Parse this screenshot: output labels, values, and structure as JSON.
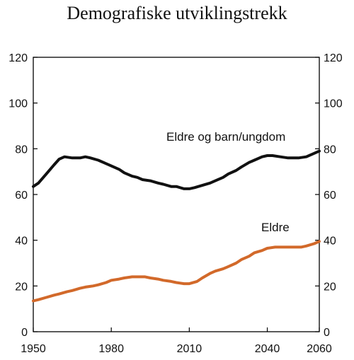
{
  "chart_data": {
    "type": "line",
    "title": "Demografiske utviklingstrekk",
    "xlabel": "",
    "ylabel": "",
    "xlim": [
      1950,
      2060
    ],
    "ylim": [
      0,
      120
    ],
    "x_ticks": [
      1950,
      1980,
      2010,
      2040,
      2060
    ],
    "y_ticks": [
      0,
      20,
      40,
      60,
      80,
      100,
      120
    ],
    "right_axis": true,
    "grid": false,
    "colors": {
      "axis": "#000000",
      "eldre": "#d2692a",
      "eldre_og_barn": "#111111"
    },
    "series": [
      {
        "name": "Eldre og barn/ungdom",
        "x": [
          1950,
          1952,
          1955,
          1958,
          1960,
          1962,
          1965,
          1968,
          1970,
          1972,
          1975,
          1978,
          1980,
          1983,
          1985,
          1988,
          1990,
          1992,
          1995,
          1998,
          2000,
          2003,
          2005,
          2008,
          2010,
          2012,
          2015,
          2018,
          2020,
          2023,
          2025,
          2028,
          2030,
          2033,
          2035,
          2038,
          2040,
          2042,
          2045,
          2048,
          2050,
          2052,
          2055,
          2058,
          2060
        ],
        "values": [
          63.5,
          65,
          69,
          73,
          75.5,
          76.5,
          76,
          76,
          76.5,
          76,
          75,
          73.5,
          72.5,
          71,
          69.5,
          68,
          67.5,
          66.5,
          66,
          65,
          64.5,
          63.5,
          63.5,
          62.5,
          62.5,
          63,
          64,
          65,
          66,
          67.5,
          69,
          70.5,
          72,
          74,
          75,
          76.5,
          77,
          77,
          76.5,
          76,
          76,
          76,
          76.5,
          78,
          79
        ]
      },
      {
        "name": "Eldre",
        "x": [
          1950,
          1952,
          1955,
          1958,
          1960,
          1963,
          1965,
          1968,
          1970,
          1973,
          1975,
          1978,
          1980,
          1983,
          1985,
          1988,
          1990,
          1993,
          1995,
          1998,
          2000,
          2003,
          2005,
          2008,
          2010,
          2013,
          2015,
          2018,
          2020,
          2023,
          2025,
          2028,
          2030,
          2033,
          2035,
          2038,
          2040,
          2043,
          2045,
          2048,
          2050,
          2053,
          2055,
          2058,
          2060
        ],
        "values": [
          13.5,
          14,
          15,
          16,
          16.5,
          17.5,
          18,
          19,
          19.5,
          20,
          20.5,
          21.5,
          22.5,
          23,
          23.5,
          24,
          24,
          24,
          23.5,
          23,
          22.5,
          22,
          21.5,
          21,
          21,
          22,
          23.5,
          25.5,
          26.5,
          27.5,
          28.5,
          30,
          31.5,
          33,
          34.5,
          35.5,
          36.5,
          37,
          37,
          37,
          37,
          37,
          37.5,
          38.5,
          39.5
        ]
      }
    ],
    "annotations": [
      "Eldre og barn/ungdom",
      "Eldre"
    ]
  }
}
